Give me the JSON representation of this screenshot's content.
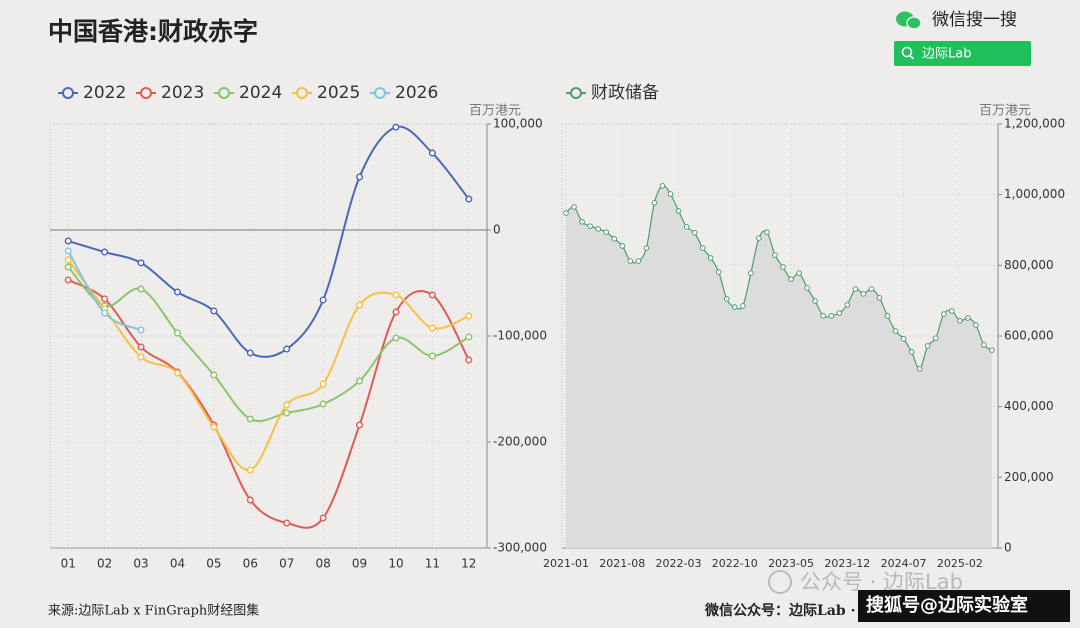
{
  "header": {
    "title": "中国香港:财政赤字",
    "search_label": "微信搜一搜",
    "search_button": "边际Lab"
  },
  "footer": {
    "source": "来源:边际Lab x FinGraph财经图集",
    "credit": "微信公众号：边际Lab · 视频号：FinGraph"
  },
  "watermarks": [
    "公众号 · 边际Lab",
    "搜狐号@边际实验室"
  ],
  "chart_data": [
    {
      "type": "line",
      "smooth": true,
      "grid": true,
      "y_label": "百万港元",
      "categories": [
        "01",
        "02",
        "03",
        "04",
        "05",
        "06",
        "07",
        "08",
        "09",
        "10",
        "11",
        "12"
      ],
      "series": [
        {
          "name": "2022",
          "color": "#4a67b8",
          "values": [
            -10400,
            -20800,
            -31000,
            -58500,
            -76400,
            -116000,
            -112300,
            -66000,
            50000,
            97000,
            72600,
            29200
          ]
        },
        {
          "name": "2023",
          "color": "#e05a55",
          "values": [
            -47200,
            -65000,
            -110400,
            -134000,
            -184000,
            -254700,
            -276400,
            -271700,
            -184000,
            -77400,
            -61300,
            -122600
          ]
        },
        {
          "name": "2024",
          "color": "#8cc46a",
          "values": [
            -34900,
            -71700,
            -55700,
            -97200,
            -136800,
            -178300,
            -172600,
            -164200,
            -142500,
            -101900,
            -118900,
            -100900
          ]
        },
        {
          "name": "2025",
          "color": "#f5c144",
          "values": [
            -28300,
            -74500,
            -119800,
            -134900,
            -185800,
            -226400,
            -165100,
            -145300,
            -70800,
            -61300,
            -92500,
            -81100
          ]
        },
        {
          "name": "2026",
          "color": "#7cc6e0",
          "values": [
            -19800,
            -78300,
            -94300,
            null,
            null,
            null,
            null,
            null,
            null,
            null,
            null,
            null
          ]
        }
      ],
      "ylim": [
        -300000,
        100000
      ],
      "yticks": [
        {
          "value": -300000,
          "label": "-300,000"
        },
        {
          "value": -200000,
          "label": "-200,000"
        },
        {
          "value": -100000,
          "label": "-100,000"
        },
        0,
        {
          "value": 100000,
          "label": "100,000"
        }
      ]
    },
    {
      "type": "area",
      "smooth": true,
      "grid": true,
      "y_label": "百万港元",
      "fill": "#dcdcdc",
      "categories": [
        "2021-01",
        null,
        null,
        null,
        null,
        null,
        null,
        "2021-08",
        null,
        null,
        null,
        null,
        null,
        null,
        "2022-03",
        null,
        null,
        null,
        null,
        null,
        null,
        "2022-10",
        null,
        null,
        null,
        null,
        null,
        null,
        "2023-05",
        null,
        null,
        null,
        null,
        null,
        null,
        "2023-12",
        null,
        null,
        null,
        null,
        null,
        null,
        "2024-07",
        null,
        null,
        null,
        null,
        null,
        null,
        "2025-02",
        null,
        null,
        null,
        null
      ],
      "series": [
        {
          "name": "财政储备",
          "color": "#4e9e6a",
          "values": [
            948000,
            965000,
            923000,
            911000,
            903000,
            894000,
            875000,
            855000,
            812000,
            812000,
            849000,
            977000,
            1025000,
            1002000,
            954000,
            909000,
            892000,
            849000,
            821000,
            781000,
            705000,
            682000,
            685000,
            778000,
            877000,
            894000,
            829000,
            795000,
            761000,
            778000,
            736000,
            699000,
            657000,
            657000,
            665000,
            688000,
            733000,
            719000,
            733000,
            708000,
            657000,
            614000,
            592000,
            555000,
            507000,
            572000,
            594000,
            662000,
            671000,
            643000,
            651000,
            631000,
            575000,
            560000
          ]
        }
      ],
      "ylim": [
        0,
        1200000
      ],
      "yticks": [
        0,
        {
          "value": 200000,
          "label": "200,000"
        },
        {
          "value": 400000,
          "label": "400,000"
        },
        {
          "value": 600000,
          "label": "600,000"
        },
        {
          "value": 800000,
          "label": "800,000"
        },
        {
          "value": 1000000,
          "label": "1,000,000"
        },
        {
          "value": 1200000,
          "label": "1,200,000"
        }
      ]
    }
  ]
}
